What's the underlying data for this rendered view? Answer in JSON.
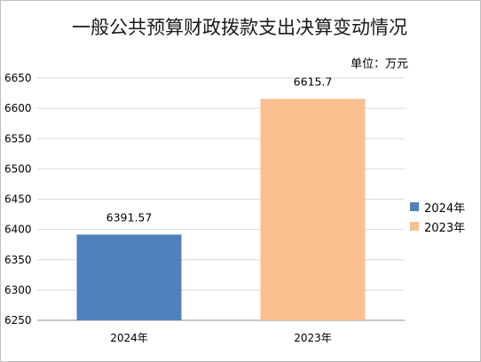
{
  "title": "一般公共预算财政拨款支出决算变动情况",
  "unit_label": "单位：万元",
  "colors": {
    "2024年": "#4f81bd",
    "2023年": "#fac090"
  },
  "chart_data": {
    "type": "bar",
    "title": "一般公共预算财政拨款支出决算变动情况",
    "categories": [
      "2024年",
      "2023年"
    ],
    "series": [
      {
        "name": "2024年",
        "values": [
          6391.57,
          null
        ],
        "color": "#4f81bd"
      },
      {
        "name": "2023年",
        "values": [
          null,
          6615.7
        ],
        "color": "#fac090"
      }
    ],
    "data_labels": [
      "6391.57",
      "6615.7"
    ],
    "ylim": [
      6250,
      6650
    ],
    "yticks": [
      6250,
      6300,
      6350,
      6400,
      6450,
      6500,
      6550,
      6600,
      6650
    ],
    "grid": true,
    "legend_position": "right",
    "xlabel": "",
    "ylabel": ""
  }
}
